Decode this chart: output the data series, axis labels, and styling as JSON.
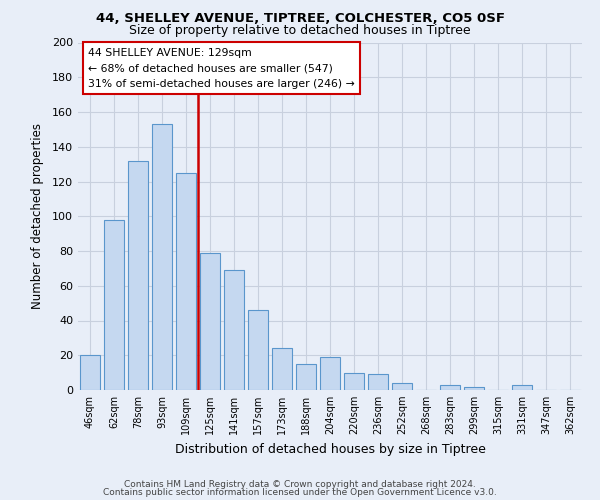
{
  "title1": "44, SHELLEY AVENUE, TIPTREE, COLCHESTER, CO5 0SF",
  "title2": "Size of property relative to detached houses in Tiptree",
  "xlabel": "Distribution of detached houses by size in Tiptree",
  "ylabel": "Number of detached properties",
  "categories": [
    "46sqm",
    "62sqm",
    "78sqm",
    "93sqm",
    "109sqm",
    "125sqm",
    "141sqm",
    "157sqm",
    "173sqm",
    "188sqm",
    "204sqm",
    "220sqm",
    "236sqm",
    "252sqm",
    "268sqm",
    "283sqm",
    "299sqm",
    "315sqm",
    "331sqm",
    "347sqm",
    "362sqm"
  ],
  "values": [
    20,
    98,
    132,
    153,
    125,
    79,
    69,
    46,
    24,
    15,
    19,
    10,
    9,
    4,
    0,
    3,
    2,
    0,
    3,
    0,
    0
  ],
  "bar_color": "#c5d8f0",
  "bar_edge_color": "#5a96cc",
  "vline_x_index": 4.5,
  "vline_color": "#cc0000",
  "annotation_line1": "44 SHELLEY AVENUE: 129sqm",
  "annotation_line2": "← 68% of detached houses are smaller (547)",
  "annotation_line3": "31% of semi-detached houses are larger (246) →",
  "box_edge_color": "#cc0000",
  "ylim": [
    0,
    200
  ],
  "yticks": [
    0,
    20,
    40,
    60,
    80,
    100,
    120,
    140,
    160,
    180,
    200
  ],
  "footer1": "Contains HM Land Registry data © Crown copyright and database right 2024.",
  "footer2": "Contains public sector information licensed under the Open Government Licence v3.0.",
  "bg_color": "#e8eef8",
  "grid_color": "#c8d0de",
  "plot_bg_color": "#e8eef8"
}
